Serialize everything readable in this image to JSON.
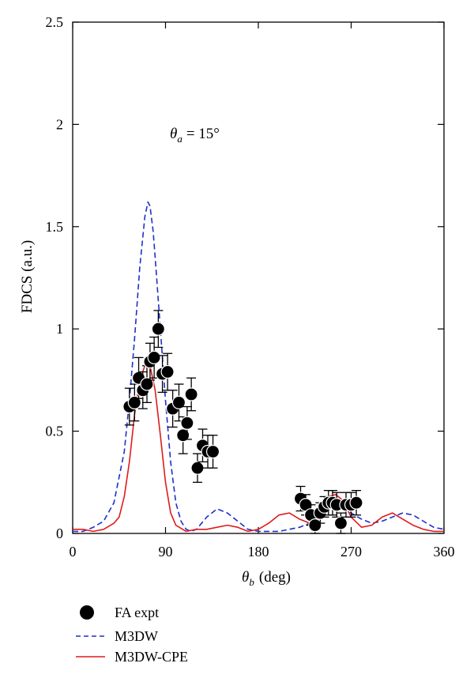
{
  "chart_data": {
    "type": "scatter",
    "xlabel": {
      "symbol": "θ",
      "sub": "b",
      "unit": "(deg)"
    },
    "ylabel": "FDCS (a.u.)",
    "annotation": {
      "symbol": "θ",
      "sub": "a",
      "text": "= 15°"
    },
    "xlim": [
      0,
      360
    ],
    "ylim": [
      0,
      2.5
    ],
    "xticks": [
      0,
      90,
      180,
      270,
      360
    ],
    "xtick_labels": [
      "0",
      "90",
      "180",
      "270",
      "360"
    ],
    "yticks": [
      0,
      0.5,
      1,
      1.5,
      2,
      2.5
    ],
    "ytick_labels": [
      "0",
      "0.5",
      "1",
      "1.5",
      "2",
      "2.5"
    ],
    "legend_placement": "bottom-left, below plot",
    "grid": false,
    "colors": {
      "expt": "#000000",
      "m3dw": "#1f2fcc",
      "cpe": "#e01b1b"
    },
    "series": [
      {
        "name": "FA expt",
        "kind": "points",
        "x": [
          55,
          60,
          64,
          68,
          72,
          75,
          79,
          83,
          87,
          92,
          97,
          103,
          107,
          111,
          115,
          121,
          126,
          131,
          136
        ],
        "y": [
          0.62,
          0.64,
          0.76,
          0.7,
          0.73,
          0.84,
          0.86,
          1.0,
          0.78,
          0.79,
          0.61,
          0.64,
          0.48,
          0.54,
          0.68,
          0.32,
          0.43,
          0.4,
          0.4
        ],
        "err": [
          0.09,
          0.09,
          0.1,
          0.09,
          0.09,
          0.09,
          0.1,
          0.09,
          0.09,
          0.09,
          0.09,
          0.09,
          0.09,
          0.08,
          0.08,
          0.07,
          0.08,
          0.08,
          0.08
        ]
      },
      {
        "name": "FA expt",
        "kind": "points",
        "x": [
          221,
          226,
          231,
          235,
          240,
          244,
          248,
          252,
          256,
          260,
          265,
          270,
          275
        ],
        "y": [
          0.17,
          0.14,
          0.09,
          0.04,
          0.1,
          0.13,
          0.15,
          0.15,
          0.14,
          0.05,
          0.14,
          0.14,
          0.15
        ],
        "err": [
          0.06,
          0.05,
          0.05,
          0.05,
          0.05,
          0.05,
          0.06,
          0.06,
          0.06,
          0.05,
          0.06,
          0.06,
          0.06
        ]
      },
      {
        "name": "M3DW",
        "kind": "line",
        "style": "dashed",
        "x": [
          0,
          10,
          20,
          30,
          40,
          50,
          55,
          60,
          65,
          70,
          73,
          75,
          78,
          80,
          85,
          90,
          95,
          100,
          105,
          110,
          115,
          120,
          130,
          140,
          150,
          160,
          170,
          180,
          200,
          220,
          235,
          245,
          250,
          255,
          260,
          265,
          270,
          280,
          290,
          300,
          310,
          320,
          330,
          340,
          350,
          360
        ],
        "y": [
          0.01,
          0.01,
          0.03,
          0.06,
          0.15,
          0.4,
          0.65,
          0.95,
          1.3,
          1.55,
          1.62,
          1.6,
          1.48,
          1.35,
          1.0,
          0.65,
          0.35,
          0.15,
          0.06,
          0.02,
          0.01,
          0.02,
          0.08,
          0.12,
          0.1,
          0.06,
          0.02,
          0.01,
          0.01,
          0.03,
          0.06,
          0.1,
          0.13,
          0.14,
          0.13,
          0.12,
          0.1,
          0.07,
          0.05,
          0.06,
          0.08,
          0.1,
          0.09,
          0.06,
          0.03,
          0.02
        ]
      },
      {
        "name": "M3DW-CPE",
        "kind": "line",
        "style": "solid",
        "x": [
          0,
          10,
          20,
          30,
          40,
          45,
          50,
          55,
          60,
          65,
          70,
          75,
          80,
          85,
          90,
          95,
          100,
          110,
          120,
          130,
          140,
          150,
          160,
          170,
          180,
          190,
          200,
          210,
          220,
          230,
          240,
          248,
          255,
          260,
          265,
          270,
          280,
          290,
          300,
          310,
          320,
          330,
          340,
          350,
          360
        ],
        "y": [
          0.02,
          0.02,
          0.01,
          0.02,
          0.05,
          0.08,
          0.18,
          0.35,
          0.58,
          0.75,
          0.82,
          0.82,
          0.7,
          0.48,
          0.25,
          0.1,
          0.04,
          0.01,
          0.02,
          0.02,
          0.03,
          0.04,
          0.03,
          0.01,
          0.02,
          0.05,
          0.09,
          0.1,
          0.07,
          0.05,
          0.12,
          0.18,
          0.19,
          0.17,
          0.13,
          0.08,
          0.03,
          0.04,
          0.08,
          0.1,
          0.07,
          0.04,
          0.02,
          0.01,
          0.01
        ]
      }
    ],
    "legend": [
      {
        "label": "FA expt",
        "marker": "circle"
      },
      {
        "label": "M3DW",
        "marker": "dashed"
      },
      {
        "label": "M3DW-CPE",
        "marker": "solid"
      }
    ]
  }
}
